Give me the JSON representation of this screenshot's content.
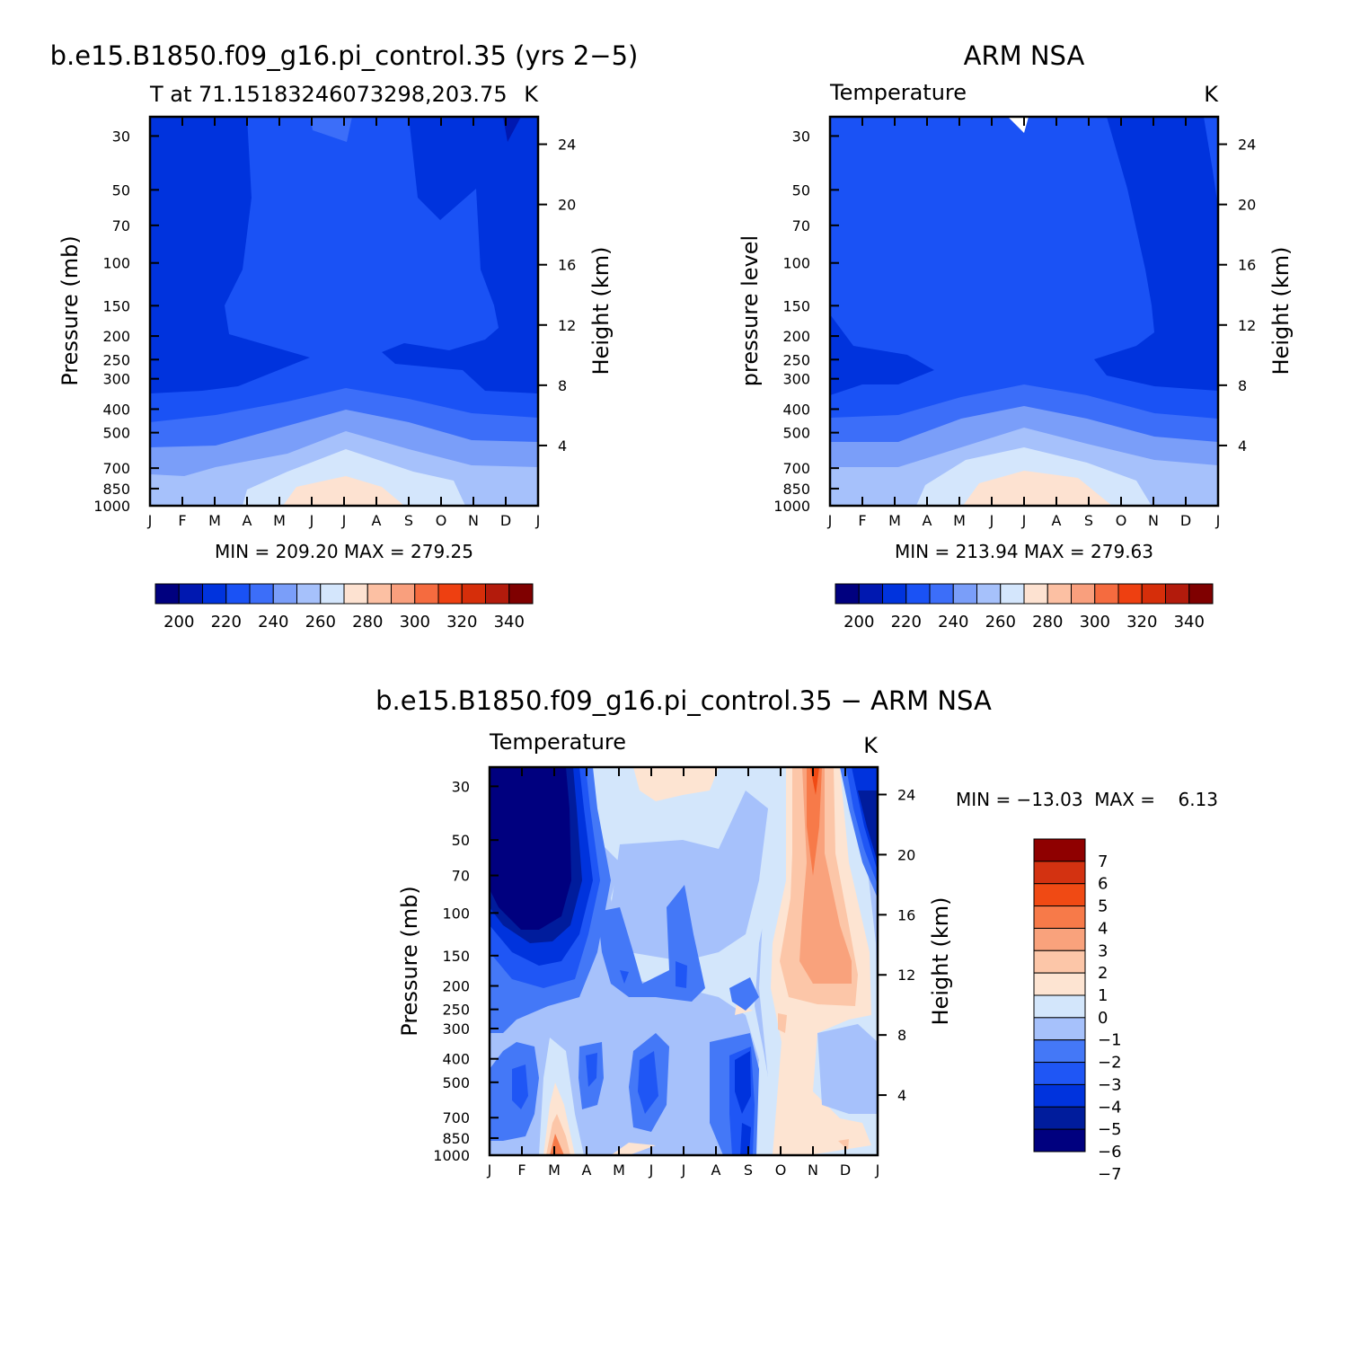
{
  "months": [
    "J",
    "F",
    "M",
    "A",
    "M",
    "J",
    "J",
    "A",
    "S",
    "O",
    "N",
    "D",
    "J"
  ],
  "pressure_ticks": [
    30,
    50,
    70,
    100,
    150,
    200,
    250,
    300,
    400,
    500,
    700,
    850,
    1000
  ],
  "height_ticks": [
    4,
    8,
    12,
    16,
    20,
    24
  ],
  "colors": {
    "temp_levels": [
      "#00007f",
      "#0018b0",
      "#0033dd",
      "#1a52f5",
      "#3c6ef9",
      "#7a9ef9",
      "#a6c1fb",
      "#d4e6fc",
      "#fde2d1",
      "#fcc0a3",
      "#f99f7d",
      "#f56b3f",
      "#ee4011",
      "#d62e0a",
      "#b31b0c",
      "#7f0000"
    ],
    "diff_levels": [
      "#00007f",
      "#001c9c",
      "#0033dd",
      "#1f56f5",
      "#4478f7",
      "#a6c1fb",
      "#d3e6fb",
      "#fde4d2",
      "#fcc6a8",
      "#f9a27c",
      "#f77a49",
      "#f04a14",
      "#d33211",
      "#8f0000"
    ]
  },
  "panels": [
    {
      "title": "b.e15.B1850.f09_g16.pi_control.35 (yrs 2−5)",
      "left_label": "T at 71.15183246073298,203.75",
      "right_label": "K",
      "ylabel": "Pressure (mb)",
      "ylabel_right": "Height (km)",
      "stats": "MIN = 209.20  MAX = 279.25",
      "colorbar_labels": [
        "200",
        "220",
        "240",
        "260",
        "280",
        "300",
        "320",
        "340"
      ]
    },
    {
      "title": "ARM NSA",
      "left_label": "Temperature",
      "right_label": "K",
      "ylabel": "pressure level",
      "ylabel_right": "Height (km)",
      "stats": "MIN = 213.94  MAX = 279.63",
      "colorbar_labels": [
        "200",
        "220",
        "240",
        "260",
        "280",
        "300",
        "320",
        "340"
      ]
    },
    {
      "title": "b.e15.B1850.f09_g16.pi_control.35 − ARM NSA",
      "left_label": "Temperature",
      "right_label": "K",
      "ylabel": "Pressure (mb)",
      "ylabel_right": "Height (km)",
      "stats": "MIN = −13.03  MAX =    6.13",
      "colorbar_labels": [
        "7",
        "6",
        "5",
        "4",
        "3",
        "2",
        "1",
        "0",
        "−1",
        "−2",
        "−3",
        "−4",
        "−5",
        "−6",
        "−7"
      ]
    }
  ],
  "chart_data": [
    {
      "type": "contour",
      "title": "b.e15.B1850.f09_g16.pi_control.35 (yrs 2−5)",
      "subtitle": "T at 71.15183246073298,203.75",
      "units": "K",
      "x": [
        "J",
        "F",
        "M",
        "A",
        "M",
        "J",
        "J",
        "A",
        "S",
        "O",
        "N",
        "D",
        "J"
      ],
      "ylabel": "Pressure (mb)",
      "ylabel_right": "Height (km)",
      "min": 209.2,
      "max": 279.25,
      "contour_levels": [
        200,
        205,
        210,
        215,
        220,
        225,
        230,
        235,
        240,
        245,
        250,
        255,
        260,
        265,
        270,
        275,
        280,
        285,
        290,
        295,
        300,
        305,
        310,
        315,
        320,
        325,
        330,
        335,
        340
      ]
    },
    {
      "type": "contour",
      "title": "ARM NSA",
      "subtitle": "Temperature",
      "units": "K",
      "x": [
        "J",
        "F",
        "M",
        "A",
        "M",
        "J",
        "J",
        "A",
        "S",
        "O",
        "N",
        "D",
        "J"
      ],
      "ylabel": "pressure level",
      "ylabel_right": "Height (km)",
      "min": 213.94,
      "max": 279.63
    },
    {
      "type": "contour",
      "title": "b.e15.B1850.f09_g16.pi_control.35 − ARM NSA",
      "subtitle": "Temperature",
      "units": "K",
      "x": [
        "J",
        "F",
        "M",
        "A",
        "M",
        "J",
        "J",
        "A",
        "S",
        "O",
        "N",
        "D",
        "J"
      ],
      "ylabel": "Pressure (mb)",
      "ylabel_right": "Height (km)",
      "min": -13.03,
      "max": 6.13,
      "contour_levels": [
        -7,
        -6,
        -5,
        -4,
        -3,
        -2,
        -1,
        0,
        1,
        2,
        3,
        4,
        5,
        6,
        7
      ]
    }
  ]
}
